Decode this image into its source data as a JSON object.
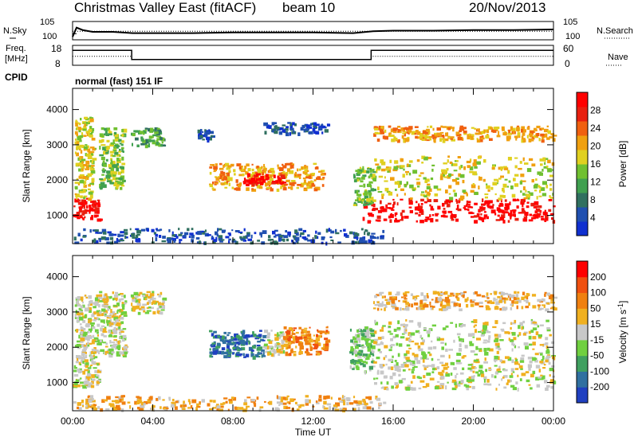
{
  "header": {
    "title": "Christmas Valley East (fitACF)",
    "beam": "beam 10",
    "date": "20/Nov/2013"
  },
  "left_labels": {
    "nsky": "N.Sky",
    "freq_line1": "Freq.",
    "freq_line2": "[MHz]",
    "cpid": "CPID"
  },
  "right_labels": {
    "nsearch": "N.Search",
    "nave": "Nave"
  },
  "cpid_text": "normal (fast) 151 IF",
  "chart_data": [
    {
      "type": "line",
      "name": "noise",
      "series": [
        {
          "name": "N.Sky",
          "x": [
            0,
            0.2,
            0.5,
            1,
            2,
            3,
            4,
            6,
            8,
            10,
            12,
            14,
            15,
            16,
            18,
            20,
            22,
            24
          ],
          "values": [
            0.5,
            2.0,
            1.6,
            1.3,
            1.3,
            1.1,
            1.1,
            1.1,
            1.2,
            1.2,
            1.2,
            1.1,
            1.4,
            1.5,
            1.5,
            1.6,
            1.6,
            1.7
          ]
        },
        {
          "name": "N.Search",
          "x": [
            0,
            24
          ],
          "values": [
            1.4,
            1.4
          ]
        }
      ],
      "yticks_left": [
        "10^5",
        "10^0"
      ],
      "yticks_right": [
        "10^5",
        "10^0"
      ],
      "xlim": [
        0,
        24
      ]
    },
    {
      "type": "line",
      "name": "frequency",
      "series": [
        {
          "name": "Freq.",
          "x": [
            0,
            2.95,
            2.95,
            14.9,
            14.9,
            24
          ],
          "values": [
            16,
            16,
            10.5,
            10.5,
            16,
            16
          ]
        },
        {
          "name": "Nave",
          "x": [
            0,
            2.95,
            2.95,
            14.9,
            14.9,
            24
          ],
          "values": [
            27,
            27,
            18,
            18,
            27,
            27
          ]
        }
      ],
      "yticks_left": [
        "18",
        "8"
      ],
      "yticks_right": [
        "60",
        "0"
      ],
      "xlim": [
        0,
        24
      ]
    },
    {
      "type": "heatmap",
      "name": "power",
      "ylabel": "Slant Range [km]",
      "ylim": [
        200,
        4600
      ],
      "xlim": [
        0,
        24
      ],
      "yticks": [
        "1000",
        "2000",
        "3000",
        "4000"
      ],
      "colorbar": {
        "label": "Power [dB]",
        "ticks": [
          "28",
          "24",
          "20",
          "16",
          "12",
          "8",
          "4"
        ],
        "colors": [
          "#1030d0",
          "#2050b0",
          "#307060",
          "#40a050",
          "#70c030",
          "#e0d020",
          "#f0a010",
          "#f06010",
          "#e82010",
          "#ff0000"
        ]
      },
      "regions": [
        {
          "x": [
            0.0,
            1.3
          ],
          "y": [
            900,
            1500
          ],
          "level": 9
        },
        {
          "x": [
            0.1,
            1.0
          ],
          "y": [
            1500,
            3800
          ],
          "level": 5
        },
        {
          "x": [
            1.3,
            2.5
          ],
          "y": [
            1800,
            3500
          ],
          "level": 4
        },
        {
          "x": [
            2.9,
            4.5
          ],
          "y": [
            3000,
            3500
          ],
          "level": 3
        },
        {
          "x": [
            6.8,
            12.5
          ],
          "y": [
            1750,
            2500
          ],
          "level": 6
        },
        {
          "x": [
            8.5,
            10.5
          ],
          "y": [
            1900,
            2200
          ],
          "level": 9
        },
        {
          "x": [
            9.5,
            12.7
          ],
          "y": [
            3350,
            3650
          ],
          "level": 1
        },
        {
          "x": [
            6.2,
            7.0
          ],
          "y": [
            3150,
            3450
          ],
          "level": 1
        },
        {
          "x": [
            14.4,
            24.0
          ],
          "y": [
            850,
            1500
          ],
          "level": 9
        },
        {
          "x": [
            15.0,
            24.0
          ],
          "y": [
            1500,
            2700
          ],
          "level": 5
        },
        {
          "x": [
            15.0,
            24.0
          ],
          "y": [
            3150,
            3550
          ],
          "level": 6
        },
        {
          "x": [
            14.0,
            15.0
          ],
          "y": [
            1300,
            2400
          ],
          "level": 4
        },
        {
          "x": [
            0.0,
            15.5
          ],
          "y": [
            250,
            650
          ],
          "level": 1
        }
      ]
    },
    {
      "type": "heatmap",
      "name": "velocity",
      "ylabel": "Slant Range [km]",
      "xlabel": "Time UT",
      "ylim": [
        200,
        4600
      ],
      "xlim": [
        0,
        24
      ],
      "yticks": [
        "1000",
        "2000",
        "3000",
        "4000"
      ],
      "xticks": [
        "00:00",
        "04:00",
        "08:00",
        "12:00",
        "16:00",
        "20:00",
        "00:00"
      ],
      "colorbar": {
        "label": "Velocity [m s",
        "label_sup": "-1",
        "label_end": "]",
        "ticks": [
          "200",
          "100",
          "50",
          "15",
          "-15",
          "-50",
          "-100",
          "-200"
        ],
        "colors": [
          "#2040c0",
          "#3070a0",
          "#40a060",
          "#70d040",
          "#c8c8c8",
          "#f0b020",
          "#f08010",
          "#f05010",
          "#ff0000"
        ]
      },
      "regions": [
        {
          "x": [
            0.0,
            1.3
          ],
          "y": [
            900,
            1600
          ],
          "level": 4
        },
        {
          "x": [
            0.1,
            1.3
          ],
          "y": [
            1600,
            3500
          ],
          "level": 4
        },
        {
          "x": [
            1.3,
            2.6
          ],
          "y": [
            1800,
            3600
          ],
          "level": 4
        },
        {
          "x": [
            2.9,
            4.5
          ],
          "y": [
            3000,
            3600
          ],
          "level": 4
        },
        {
          "x": [
            6.8,
            9.5
          ],
          "y": [
            1750,
            2500
          ],
          "level": 1
        },
        {
          "x": [
            9.5,
            10.5
          ],
          "y": [
            1800,
            2500
          ],
          "level": 4
        },
        {
          "x": [
            10.5,
            12.7
          ],
          "y": [
            1800,
            2600
          ],
          "level": 6
        },
        {
          "x": [
            13.8,
            15.0
          ],
          "y": [
            1300,
            2600
          ],
          "level": 3
        },
        {
          "x": [
            15.0,
            24.0
          ],
          "y": [
            850,
            1700
          ],
          "level": 4
        },
        {
          "x": [
            15.0,
            24.0
          ],
          "y": [
            1700,
            2800
          ],
          "level": 4
        },
        {
          "x": [
            15.0,
            24.0
          ],
          "y": [
            3100,
            3600
          ],
          "level": 5
        },
        {
          "x": [
            0.0,
            15.5
          ],
          "y": [
            250,
            650
          ],
          "level": 5
        }
      ]
    }
  ]
}
